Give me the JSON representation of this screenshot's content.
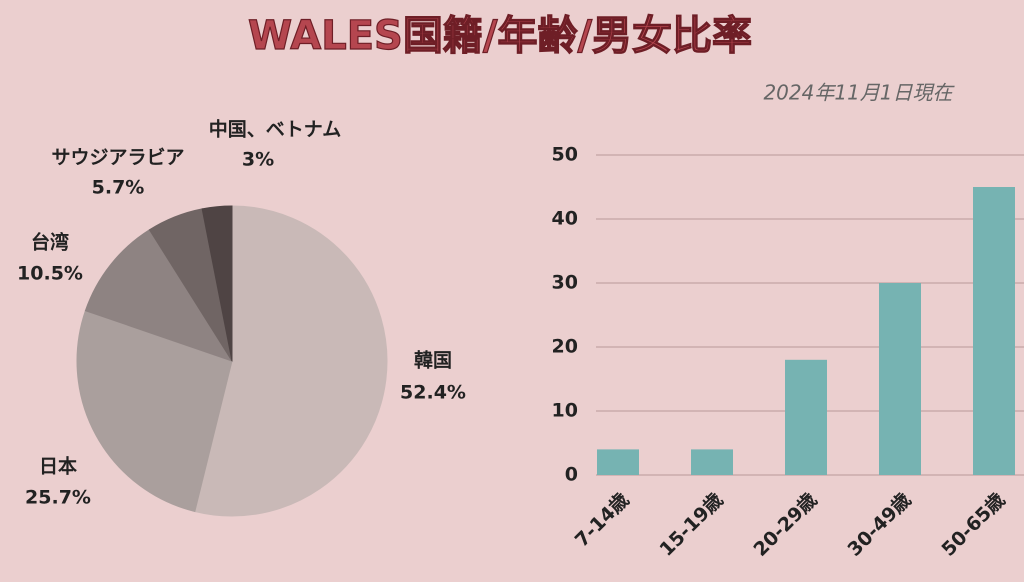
{
  "title": "WALES国籍/年齢/男女比率",
  "subtitle": "2024年11月1日現在",
  "chart_data": [
    {
      "type": "pie",
      "categories": [
        "韓国",
        "日本",
        "台湾",
        "サウジアラビア",
        "中国、ベトナム"
      ],
      "values": [
        52.4,
        25.7,
        10.5,
        5.7,
        3
      ],
      "value_labels": [
        "52.4%",
        "25.7%",
        "10.5%",
        "5.7%",
        "3%"
      ],
      "colors": [
        "#c9b9b7",
        "#aa9f9d",
        "#8e8382",
        "#706564",
        "#4f4444"
      ]
    },
    {
      "type": "bar",
      "categories": [
        "7-14歳",
        "15-19歳",
        "20-29歳",
        "30-49歳",
        "50-65歳"
      ],
      "values": [
        4,
        4,
        18,
        30,
        45
      ],
      "color": "#76b3b2",
      "ylim": [
        0,
        50
      ],
      "yticks": [
        0,
        10,
        20,
        30,
        40,
        50
      ],
      "grid": true
    }
  ]
}
